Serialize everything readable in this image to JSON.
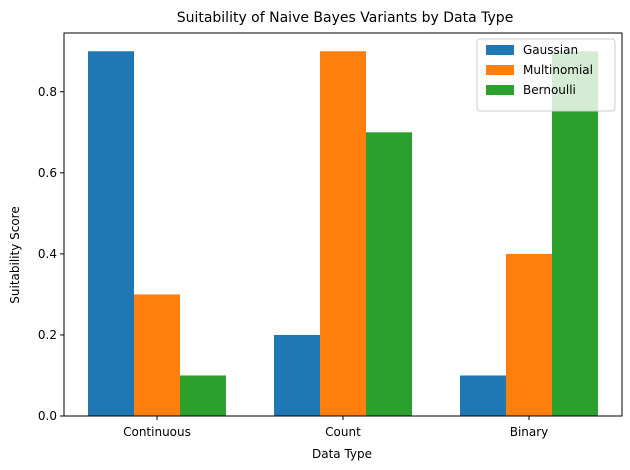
{
  "chart_data": {
    "type": "bar",
    "title": "Suitability of Naive Bayes Variants by Data Type",
    "xlabel": "Data Type",
    "ylabel": "Suitability Score",
    "categories": [
      "Continuous",
      "Count",
      "Binary"
    ],
    "series": [
      {
        "name": "Gaussian",
        "values": [
          0.9,
          0.2,
          0.1
        ],
        "color": "#1f77b4"
      },
      {
        "name": "Multinomial",
        "values": [
          0.3,
          0.9,
          0.4
        ],
        "color": "#ff7f0e"
      },
      {
        "name": "Bernoulli",
        "values": [
          0.1,
          0.7,
          0.9
        ],
        "color": "#2ca02c"
      }
    ],
    "ylim": [
      0,
      0.945
    ],
    "yticks": [
      0.0,
      0.2,
      0.4,
      0.6,
      0.8
    ],
    "ytick_labels": [
      "0.0",
      "0.2",
      "0.4",
      "0.6",
      "0.8"
    ],
    "grid": false,
    "legend_position": "top-right"
  }
}
